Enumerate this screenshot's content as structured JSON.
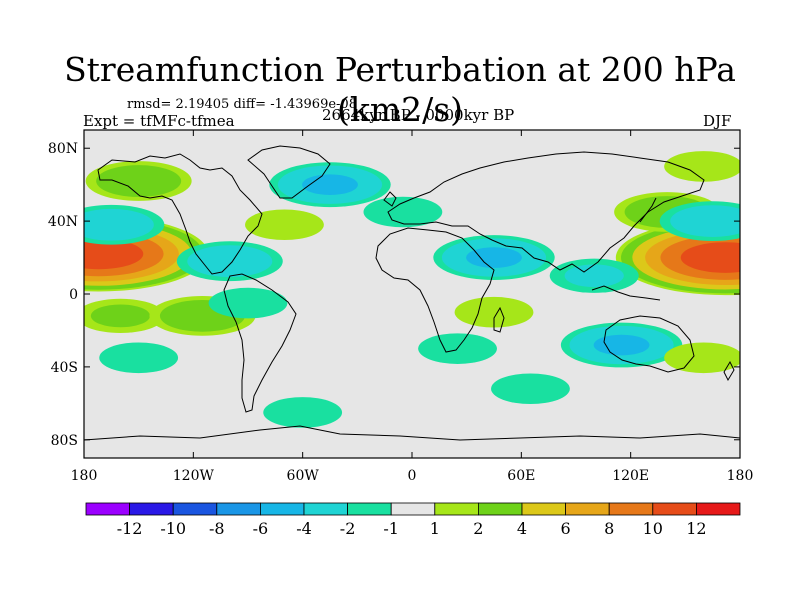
{
  "title": "Streamfunction Perturbation at 200 hPa (km2/s)",
  "stats": "rmsd= 2.19405 diff= -1.43969e-08",
  "experiment": "Expt = tfMFc-tfmea",
  "period": "2664kyr BP - 0000kyr BP",
  "season": "DJF",
  "x_ticks": [
    {
      "lon": -180,
      "label": "180"
    },
    {
      "lon": -120,
      "label": "120W"
    },
    {
      "lon": -60,
      "label": "60W"
    },
    {
      "lon": 0,
      "label": "0"
    },
    {
      "lon": 60,
      "label": "60E"
    },
    {
      "lon": 120,
      "label": "120E"
    },
    {
      "lon": 180,
      "label": "180"
    }
  ],
  "y_ticks": [
    {
      "lat": 80,
      "label": "80N"
    },
    {
      "lat": 40,
      "label": "40N"
    },
    {
      "lat": 0,
      "label": "0"
    },
    {
      "lat": -40,
      "label": "40S"
    },
    {
      "lat": -80,
      "label": "80S"
    }
  ],
  "colorbar": {
    "colors": [
      "#9b00ff",
      "#2a18e6",
      "#1a55e0",
      "#1a96e6",
      "#17b6e6",
      "#1fd4d4",
      "#19e0a0",
      "#e6e6e6",
      "#a6e619",
      "#6ed219",
      "#dcc819",
      "#e6a619",
      "#e67819",
      "#e64c19",
      "#e61919"
    ],
    "labels": [
      "-12",
      "-10",
      "-8",
      "-6",
      "-4",
      "-2",
      "-1",
      "1",
      "2",
      "4",
      "6",
      "8",
      "10",
      "12"
    ]
  },
  "chart_data": {
    "type": "heatmap",
    "title": "Streamfunction Perturbation at 200 hPa (km2/s)",
    "units": "km2/s",
    "lon_range": [
      -180,
      180
    ],
    "lat_range": [
      -90,
      90
    ],
    "levels": [
      -12,
      -10,
      -8,
      -6,
      -4,
      -2,
      -1,
      1,
      2,
      4,
      6,
      8,
      10,
      12
    ],
    "field_anomalies": [
      {
        "lon": -172,
        "lat": 22,
        "value": 11
      },
      {
        "lon": 172,
        "lat": 20,
        "value": 11
      },
      {
        "lon": 140,
        "lat": 45,
        "value": 3
      },
      {
        "lon": -165,
        "lat": 38,
        "value": -3
      },
      {
        "lon": 165,
        "lat": 40,
        "value": -3
      },
      {
        "lon": -150,
        "lat": 62,
        "value": 3
      },
      {
        "lon": -45,
        "lat": 60,
        "value": -4
      },
      {
        "lon": 45,
        "lat": 20,
        "value": -4
      },
      {
        "lon": -100,
        "lat": 18,
        "value": -3
      },
      {
        "lon": -70,
        "lat": 38,
        "value": 1.5
      },
      {
        "lon": 100,
        "lat": 10,
        "value": -2
      },
      {
        "lon": 115,
        "lat": -28,
        "value": -4
      },
      {
        "lon": -160,
        "lat": -12,
        "value": 2
      },
      {
        "lon": -115,
        "lat": -12,
        "value": 3
      },
      {
        "lon": -150,
        "lat": -35,
        "value": -1.5
      },
      {
        "lon": -60,
        "lat": -65,
        "value": -1.5
      },
      {
        "lon": 65,
        "lat": -52,
        "value": -1.5
      },
      {
        "lon": 25,
        "lat": -30,
        "value": -1.5
      },
      {
        "lon": -5,
        "lat": 45,
        "value": -1.5
      },
      {
        "lon": -90,
        "lat": -5,
        "value": -1.5
      },
      {
        "lon": 160,
        "lat": -35,
        "value": 1.5
      },
      {
        "lon": 45,
        "lat": -10,
        "value": 1.5
      },
      {
        "lon": 160,
        "lat": 70,
        "value": 1.5
      }
    ]
  }
}
